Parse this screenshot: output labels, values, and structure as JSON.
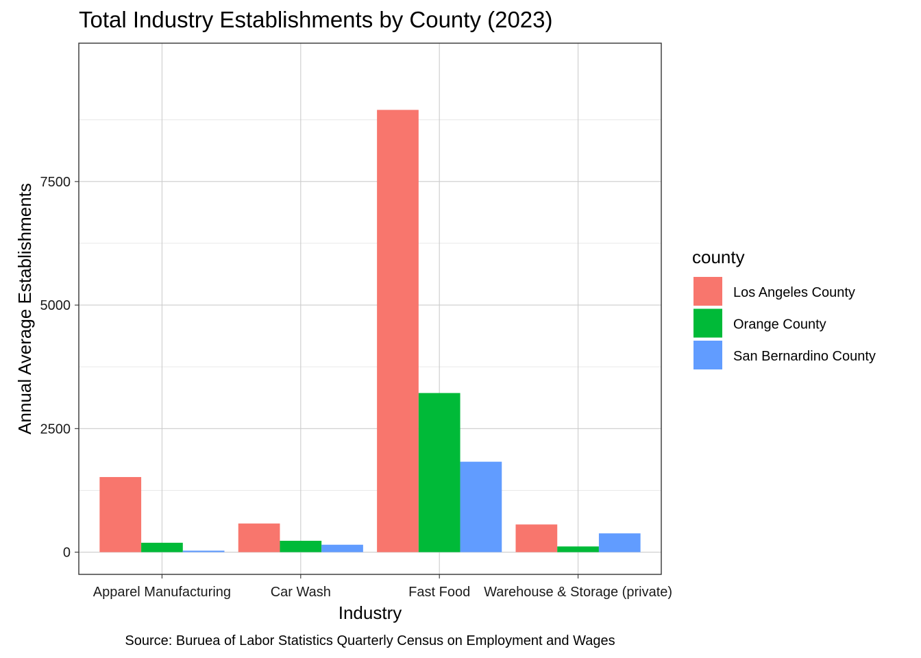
{
  "chart_data": {
    "type": "bar",
    "title": "Total Industry Establishments by County (2023)",
    "xlabel": "Industry",
    "ylabel": "Annual Average Establishments",
    "caption": "Source: Buruea of Labor Statistics Quarterly Census on Employment and Wages",
    "categories": [
      "Apparel Manufacturing",
      "Car Wash",
      "Fast Food",
      "Warehouse & Storage (private)"
    ],
    "series": [
      {
        "name": "Los Angeles County",
        "color": "#F8766D",
        "values": [
          1520,
          580,
          8950,
          560
        ]
      },
      {
        "name": "Orange County",
        "color": "#00BA38",
        "values": [
          190,
          230,
          3220,
          115
        ]
      },
      {
        "name": "San Bernardino County",
        "color": "#619CFF",
        "values": [
          30,
          150,
          1830,
          380
        ]
      }
    ],
    "ylim": [
      -450,
      10300
    ],
    "yticks": [
      0,
      2500,
      5000,
      7500
    ],
    "legend": {
      "title": "county",
      "position": "right"
    },
    "grid": true
  }
}
